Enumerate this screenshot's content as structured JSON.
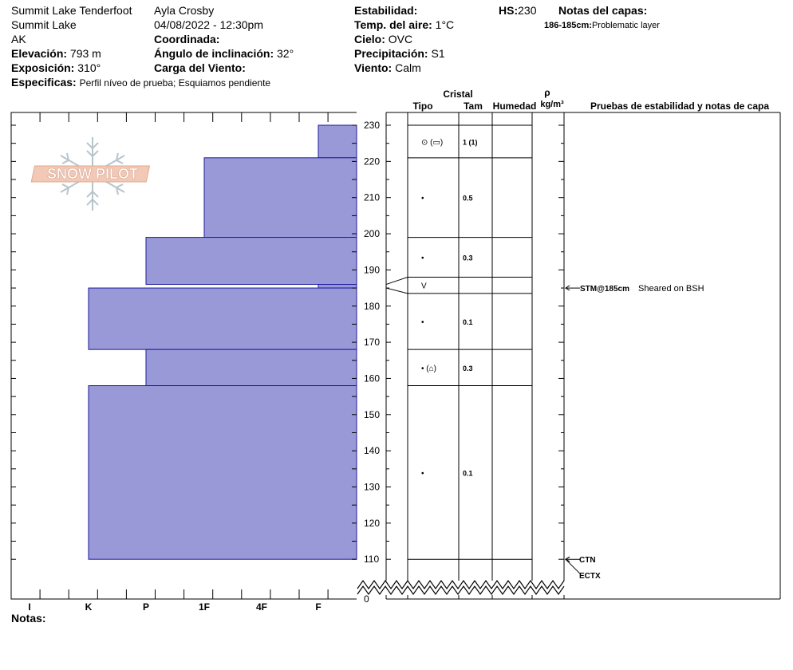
{
  "header": {
    "location_name": "Summit Lake Tenderfoot",
    "location_area": "Summit Lake",
    "state": "AK",
    "observer": "Ayla Crosby",
    "datetime": "04/08/2022 - 12:30pm",
    "labels": {
      "elevation": "Elevación:",
      "aspect": "Exposición:",
      "specifics": "Especificas:",
      "coordinate": "Coordinada:",
      "slope_angle": "Ángulo de inclinación:",
      "wind_loading": "Carga del Viento:",
      "stability": "Estabilidad:",
      "air_temp": "Temp. del aire:",
      "sky": "Cielo:",
      "precipitation": "Precipitación:",
      "wind": "Viento:",
      "hs": "HS:",
      "layer_notes": "Notas del capas:"
    },
    "elevation": "793 m",
    "aspect": "310°",
    "specifics": "Perfil níveo de prueba; Esquiamos pendiente",
    "slope_angle": "32°",
    "air_temp": "1°C",
    "sky": "OVC",
    "precipitation": "S1",
    "wind": "Calm",
    "hs": "230",
    "layer_note_depth": "186-185cm:",
    "layer_note_text": "Problematic layer"
  },
  "logo_text": "SNOW PILOT",
  "columns": {
    "crystal": "Cristal",
    "type": "Tipo",
    "size": "Tam",
    "moisture": "Humedad",
    "density_symbol": "ρ",
    "density_unit": "kg/m³",
    "stability_tests": "Pruebas de estabilidad y notas de capa"
  },
  "hardness_labels": [
    "I",
    "K",
    "P",
    "1F",
    "4F",
    "F"
  ],
  "depth_ticks": [
    "230",
    "220",
    "210",
    "200",
    "190",
    "180",
    "170",
    "160",
    "150",
    "140",
    "130",
    "120",
    "110",
    "0"
  ],
  "chart_data": {
    "type": "snow_profile",
    "total_depth_cm": 230,
    "hardness_layers": [
      {
        "top": 230,
        "bottom": 221,
        "hardness": "F"
      },
      {
        "top": 221,
        "bottom": 199,
        "hardness": "1F"
      },
      {
        "top": 199,
        "bottom": 186,
        "hardness": "P"
      },
      {
        "top": 186,
        "bottom": 185,
        "hardness": "F"
      },
      {
        "top": 185,
        "bottom": 168,
        "hardness": "K"
      },
      {
        "top": 168,
        "bottom": 158,
        "hardness": "P"
      },
      {
        "top": 158,
        "bottom": 110,
        "hardness": "K"
      }
    ],
    "strat_layers": [
      {
        "top": 230,
        "bottom": 221,
        "type": "⊙ (▭)",
        "size": "1 (1)"
      },
      {
        "top": 221,
        "bottom": 199,
        "type": "•",
        "size": "0.5"
      },
      {
        "top": 199,
        "bottom": 188,
        "type": "•",
        "size": "0.3"
      },
      {
        "top": 188,
        "bottom": 183.5,
        "type": "V",
        "size": ""
      },
      {
        "top": 183.5,
        "bottom": 168,
        "type": "•",
        "size": "0.1"
      },
      {
        "top": 168,
        "bottom": 158,
        "type": "• (⌂)",
        "size": "0.3"
      },
      {
        "top": 158,
        "bottom": 110,
        "type": "•",
        "size": "0.1"
      }
    ],
    "stability_tests": [
      {
        "depth": 185,
        "code": "STM@185cm",
        "note": "Sheared on BSH"
      },
      {
        "depth": 110,
        "code": "CTN",
        "note": ""
      },
      {
        "depth": 110,
        "code": "ECTX",
        "note": ""
      }
    ]
  },
  "footer": {
    "notes_label": "Notas:"
  },
  "colors": {
    "layer_fill": "#9999d8",
    "layer_stroke": "#1a1aa0"
  }
}
